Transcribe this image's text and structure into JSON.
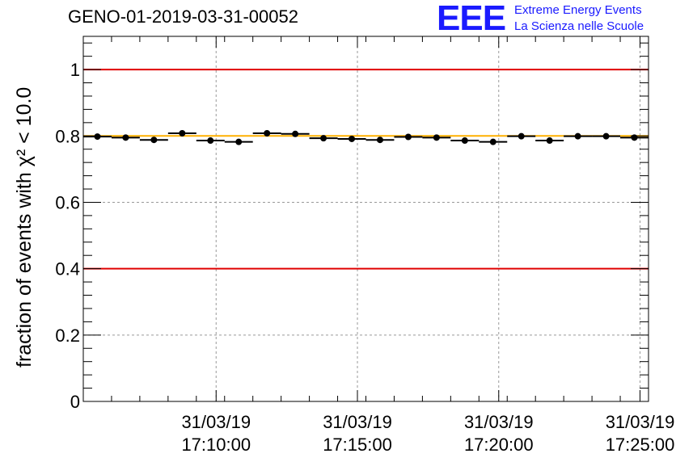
{
  "header": {
    "title": "GENO-01-2019-03-31-00052",
    "logo_mark": "EEE",
    "logo_line1": "Extreme Energy Events",
    "logo_line2": "La Scienza nelle Scuole"
  },
  "colors": {
    "limit_line": "#e00000",
    "reference_line": "#ffb000",
    "marker": "#000000",
    "logo": "#1a1aff"
  },
  "chart_data": {
    "type": "scatter",
    "title": "GENO-01-2019-03-31-00052",
    "xlabel": "",
    "ylabel": "fraction of events with χ² < 10.0",
    "ylim": [
      0,
      1.1
    ],
    "xlim_minutes": [
      0,
      20
    ],
    "y_ticks": [
      0,
      0.2,
      0.4,
      0.6,
      0.8,
      1
    ],
    "y_tick_labels": [
      "0",
      "0.2",
      "0.4",
      "0.6",
      "0.8",
      "1"
    ],
    "x_ticks": [
      {
        "t": 4.7,
        "date": "31/03/19",
        "time": "17:10:00"
      },
      {
        "t": 9.7,
        "date": "31/03/19",
        "time": "17:15:00"
      },
      {
        "t": 14.7,
        "date": "31/03/19",
        "time": "17:20:00"
      },
      {
        "t": 19.7,
        "date": "31/03/19",
        "time": "17:25:00"
      }
    ],
    "x_minor_step": 1,
    "grid": true,
    "hlines": [
      {
        "y": 1.0,
        "kind": "limit"
      },
      {
        "y": 0.8,
        "kind": "reference"
      },
      {
        "y": 0.4,
        "kind": "limit"
      }
    ],
    "series": [
      {
        "name": "fraction",
        "bin_width": 1,
        "x": [
          0.5,
          1.5,
          2.5,
          3.5,
          4.5,
          5.5,
          6.5,
          7.5,
          8.5,
          9.5,
          10.5,
          11.5,
          12.5,
          13.5,
          14.5,
          15.5,
          16.5,
          17.5,
          18.5,
          19.5
        ],
        "y": [
          0.798,
          0.795,
          0.788,
          0.808,
          0.786,
          0.782,
          0.808,
          0.806,
          0.793,
          0.791,
          0.788,
          0.797,
          0.795,
          0.786,
          0.782,
          0.799,
          0.786,
          0.799,
          0.799,
          0.795
        ]
      }
    ]
  }
}
